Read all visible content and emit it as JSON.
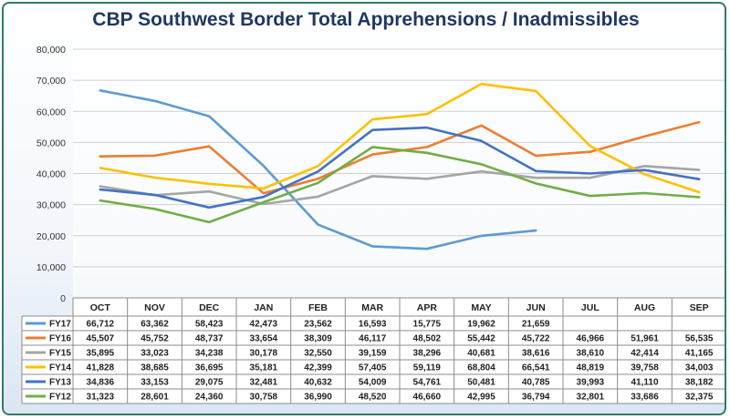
{
  "chart_data": {
    "type": "line",
    "title": "CBP Southwest Border Total Apprehensions / Inadmissibles",
    "xlabel": "",
    "ylabel": "",
    "categories": [
      "OCT",
      "NOV",
      "DEC",
      "JAN",
      "FEB",
      "MAR",
      "APR",
      "MAY",
      "JUN",
      "JUL",
      "AUG",
      "SEP"
    ],
    "ylim": [
      0,
      80000
    ],
    "yticks": [
      "0",
      "10,000",
      "20,000",
      "30,000",
      "40,000",
      "50,000",
      "60,000",
      "70,000",
      "80,000"
    ],
    "grid": true,
    "legend": "data-table",
    "series": [
      {
        "name": "FY17",
        "color": "#5b9bd5",
        "values": [
          66712,
          63362,
          58423,
          42473,
          23562,
          16593,
          15775,
          19962,
          21659,
          null,
          null,
          null
        ],
        "labels": [
          "66,712",
          "63,362",
          "58,423",
          "42,473",
          "23,562",
          "16,593",
          "15,775",
          "19,962",
          "21,659",
          "",
          "",
          ""
        ]
      },
      {
        "name": "FY16",
        "color": "#ed7d31",
        "values": [
          45507,
          45752,
          48737,
          33654,
          38309,
          46117,
          48502,
          55442,
          45722,
          46966,
          51961,
          56535
        ],
        "labels": [
          "45,507",
          "45,752",
          "48,737",
          "33,654",
          "38,309",
          "46,117",
          "48,502",
          "55,442",
          "45,722",
          "46,966",
          "51,961",
          "56,535"
        ]
      },
      {
        "name": "FY15",
        "color": "#a5a5a5",
        "values": [
          35895,
          33023,
          34238,
          30178,
          32550,
          39159,
          38296,
          40681,
          38616,
          38610,
          42414,
          41165
        ],
        "labels": [
          "35,895",
          "33,023",
          "34,238",
          "30,178",
          "32,550",
          "39,159",
          "38,296",
          "40,681",
          "38,616",
          "38,610",
          "42,414",
          "41,165"
        ]
      },
      {
        "name": "FY14",
        "color": "#ffc000",
        "values": [
          41828,
          38685,
          36695,
          35181,
          42399,
          57405,
          59119,
          68804,
          66541,
          48819,
          39758,
          34003
        ],
        "labels": [
          "41,828",
          "38,685",
          "36,695",
          "35,181",
          "42,399",
          "57,405",
          "59,119",
          "68,804",
          "66,541",
          "48,819",
          "39,758",
          "34,003"
        ]
      },
      {
        "name": "FY13",
        "color": "#4472c4",
        "values": [
          34836,
          33153,
          29075,
          32481,
          40632,
          54009,
          54761,
          50481,
          40785,
          39993,
          41110,
          38182
        ],
        "labels": [
          "34,836",
          "33,153",
          "29,075",
          "32,481",
          "40,632",
          "54,009",
          "54,761",
          "50,481",
          "40,785",
          "39,993",
          "41,110",
          "38,182"
        ]
      },
      {
        "name": "FY12",
        "color": "#70ad47",
        "values": [
          31323,
          28601,
          24360,
          30758,
          36990,
          48520,
          46660,
          42995,
          36794,
          32801,
          33686,
          32375
        ],
        "labels": [
          "31,323",
          "28,601",
          "24,360",
          "30,758",
          "36,990",
          "48,520",
          "46,660",
          "42,995",
          "36,794",
          "32,801",
          "33,686",
          "32,375"
        ]
      }
    ]
  }
}
